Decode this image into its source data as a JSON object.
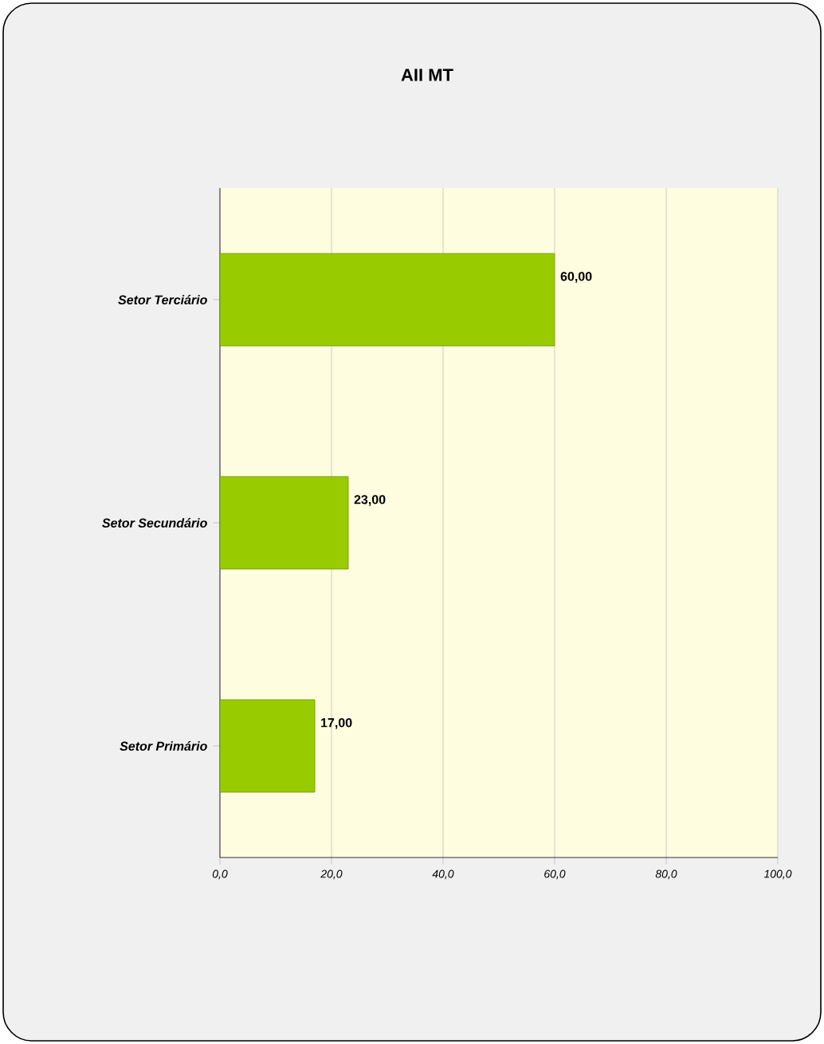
{
  "chart_data": {
    "type": "bar",
    "orientation": "horizontal",
    "title": "AII MT",
    "categories": [
      "Setor Terciário",
      "Setor  Secundário",
      "Setor  Primário"
    ],
    "values": [
      60,
      23,
      17
    ],
    "value_labels": [
      "60,00",
      "23,00",
      "17,00"
    ],
    "color": "#99cc00",
    "xlim": [
      0,
      100
    ],
    "xticks": [
      {
        "value": 0,
        "label": "0,0"
      },
      {
        "value": 20,
        "label": "20,0"
      },
      {
        "value": 40,
        "label": "40,0"
      },
      {
        "value": 60,
        "label": "60,0"
      },
      {
        "value": 80,
        "label": "80,0"
      },
      {
        "value": 100,
        "label": "100,0"
      }
    ],
    "grid": "x"
  }
}
